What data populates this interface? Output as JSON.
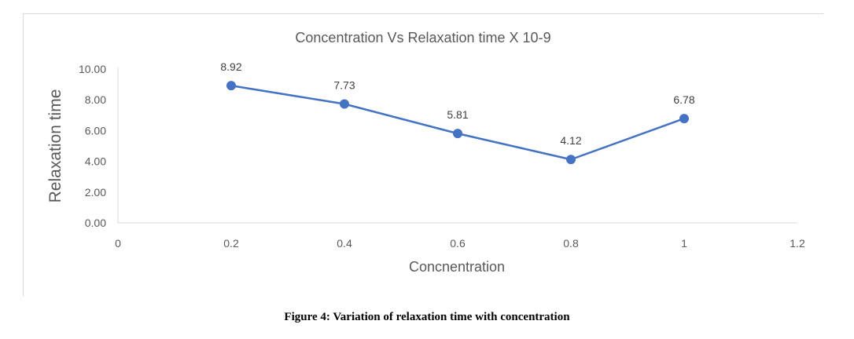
{
  "caption": "Figure 4: Variation of relaxation time with concentration",
  "chart_data": {
    "type": "line",
    "title": "Concentration  Vs Relaxation time  X 10-9",
    "xlabel": "Concnentration",
    "ylabel": "Relaxation time",
    "x": [
      0.2,
      0.4,
      0.6,
      0.8,
      1.0
    ],
    "series": [
      {
        "values": [
          8.92,
          7.73,
          5.81,
          4.12,
          6.78
        ]
      }
    ],
    "data_labels": [
      "8.92",
      "7.73",
      "5.81",
      "4.12",
      "6.78"
    ],
    "xlim": [
      0,
      1.2
    ],
    "ylim": [
      0,
      10
    ],
    "x_ticks": [
      "0",
      "0.2",
      "0.4",
      "0.6",
      "0.8",
      "1",
      "1.2"
    ],
    "y_ticks": [
      "0.00",
      "2.00",
      "4.00",
      "6.00",
      "8.00",
      "10.00"
    ],
    "grid": false,
    "line_color": "#4472c4"
  }
}
